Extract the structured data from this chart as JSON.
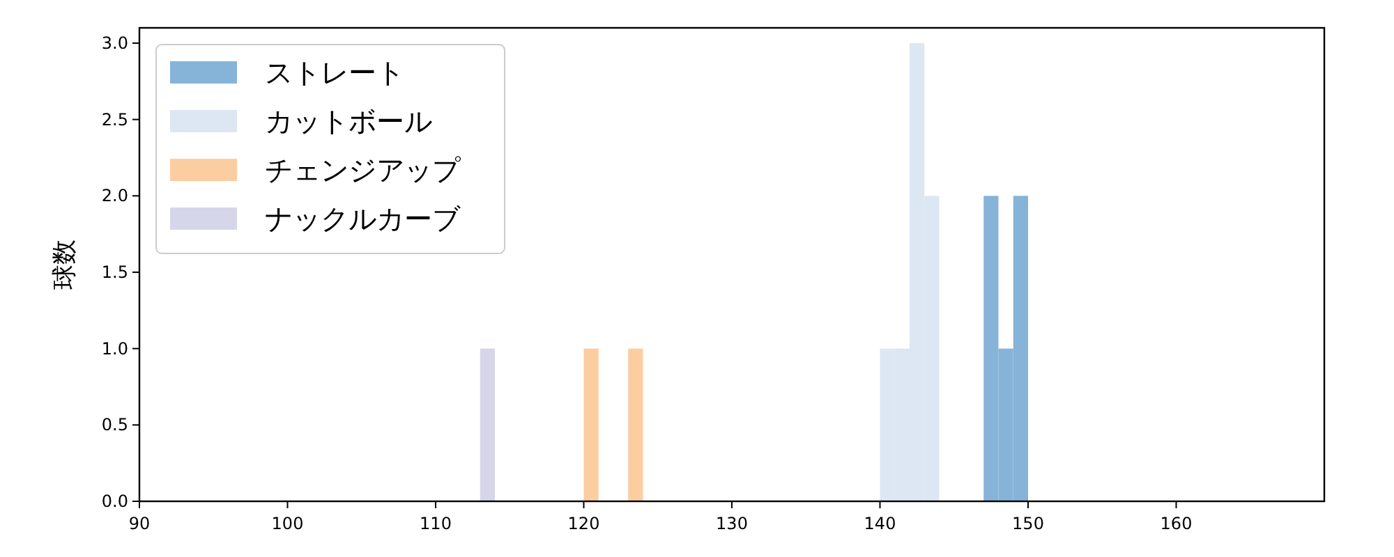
{
  "chart_data": {
    "type": "histogram",
    "ylabel": "球数",
    "xlim": [
      90,
      170
    ],
    "xticks": [
      90,
      100,
      110,
      120,
      130,
      140,
      150,
      160
    ],
    "ylim": [
      0,
      3.1
    ],
    "yticks": [
      {
        "value": 0,
        "label": "0.0"
      },
      {
        "value": 0.5,
        "label": "0.5"
      },
      {
        "value": 1,
        "label": "1.0"
      },
      {
        "value": 1.5,
        "label": "1.5"
      },
      {
        "value": 2,
        "label": "2.0"
      },
      {
        "value": 2.5,
        "label": "2.5"
      },
      {
        "value": 3,
        "label": "3.0"
      }
    ],
    "legend": "top left",
    "grid": false,
    "bins": [
      113,
      114,
      115,
      116,
      117,
      118,
      119,
      120,
      121,
      122,
      123,
      124,
      125,
      126,
      127,
      128,
      129,
      130,
      131,
      132,
      133,
      134,
      135,
      136,
      137,
      138,
      139,
      140,
      141,
      142,
      143,
      144,
      145,
      146,
      147,
      148,
      149,
      150
    ],
    "series": [
      {
        "name": "ストレート",
        "color": "#86b4d8",
        "values": [
          0,
          0,
          0,
          0,
          0,
          0,
          0,
          0,
          0,
          0,
          0,
          0,
          0,
          0,
          0,
          0,
          0,
          0,
          0,
          0,
          0,
          0,
          0,
          0,
          0,
          0,
          0,
          0,
          0,
          0,
          0,
          0,
          0,
          0,
          2,
          1,
          2
        ]
      },
      {
        "name": "カットボール",
        "color": "#dce7f3",
        "values": [
          0,
          0,
          0,
          0,
          0,
          0,
          0,
          0,
          0,
          0,
          0,
          0,
          0,
          0,
          0,
          0,
          0,
          0,
          0,
          0,
          0,
          0,
          0,
          0,
          0,
          0,
          0,
          1,
          1,
          3,
          2,
          0,
          0,
          0,
          0,
          0,
          0
        ]
      },
      {
        "name": "チェンジアップ",
        "color": "#fdcda2",
        "values": [
          0,
          0,
          0,
          0,
          0,
          0,
          0,
          1,
          0,
          0,
          1,
          0,
          0,
          0,
          0,
          0,
          0,
          0,
          0,
          0,
          0,
          0,
          0,
          0,
          0,
          0,
          0,
          0,
          0,
          0,
          0,
          0,
          0,
          0,
          0,
          0,
          0
        ]
      },
      {
        "name": "ナックルカーブ",
        "color": "#d6d6ea",
        "values": [
          1,
          0,
          0,
          0,
          0,
          0,
          0,
          0,
          0,
          0,
          0,
          0,
          0,
          0,
          0,
          0,
          0,
          0,
          0,
          0,
          0,
          0,
          0,
          0,
          0,
          0,
          0,
          0,
          0,
          0,
          0,
          0,
          0,
          0,
          0,
          0,
          0
        ]
      }
    ]
  }
}
